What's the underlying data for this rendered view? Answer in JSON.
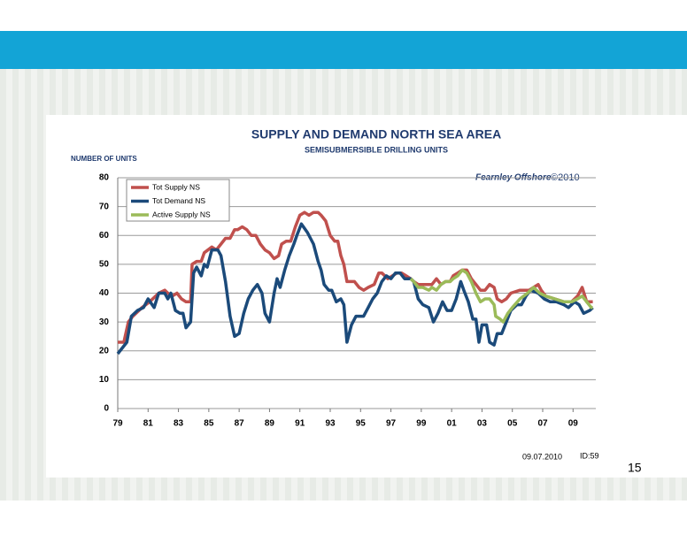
{
  "chart_data": {
    "type": "line",
    "title": "SUPPLY AND DEMAND NORTH SEA AREA",
    "subtitle": "SEMISUBMERSIBLE DRILLING UNITS",
    "y_label": "NUMBER OF UNITS",
    "xlim": [
      1979,
      2010.5
    ],
    "ylim": [
      0,
      80
    ],
    "xticks": [
      {
        "value": 1979,
        "label": "79"
      },
      {
        "value": 1981,
        "label": "81"
      },
      {
        "value": 1983,
        "label": "83"
      },
      {
        "value": 1985,
        "label": "85"
      },
      {
        "value": 1987,
        "label": "87"
      },
      {
        "value": 1989,
        "label": "89"
      },
      {
        "value": 1991,
        "label": "91"
      },
      {
        "value": 1993,
        "label": "93"
      },
      {
        "value": 1995,
        "label": "95"
      },
      {
        "value": 1997,
        "label": "97"
      },
      {
        "value": 1999,
        "label": "99"
      },
      {
        "value": 2001,
        "label": "01"
      },
      {
        "value": 2003,
        "label": "03"
      },
      {
        "value": 2005,
        "label": "05"
      },
      {
        "value": 2007,
        "label": "07"
      },
      {
        "value": 2009,
        "label": "09"
      }
    ],
    "yticks": [
      0,
      10,
      20,
      30,
      40,
      50,
      60,
      70,
      80
    ],
    "grid": true,
    "legend": "upper left",
    "series": [
      {
        "name": "Tot Supply NS",
        "color": "#c0504d",
        "x": [
          1979.0,
          1979.4,
          1979.7,
          1980.0,
          1980.6,
          1981.1,
          1981.7,
          1982.1,
          1982.3,
          1982.6,
          1982.9,
          1983.2,
          1983.5,
          1983.8,
          1983.9,
          1984.2,
          1984.5,
          1984.7,
          1985.2,
          1985.5,
          1985.8,
          1986.1,
          1986.4,
          1986.7,
          1986.9,
          1987.2,
          1987.5,
          1987.8,
          1988.1,
          1988.4,
          1988.7,
          1989.0,
          1989.3,
          1989.6,
          1989.8,
          1990.1,
          1990.4,
          1990.7,
          1991.0,
          1991.3,
          1991.6,
          1991.9,
          1992.2,
          1992.4,
          1992.7,
          1993.0,
          1993.3,
          1993.5,
          1993.7,
          1993.9,
          1994.1,
          1994.4,
          1994.6,
          1994.9,
          1995.2,
          1995.5,
          1995.9,
          1996.2,
          1996.4,
          1996.8,
          1997.1,
          1997.4,
          1997.7,
          1998.0,
          1998.3,
          1998.5,
          1998.8,
          1999.4,
          1999.7,
          2000.0,
          2000.3,
          2000.6,
          2000.9,
          2001.1,
          2001.4,
          2001.7,
          2002.0,
          2002.3,
          2002.6,
          2002.9,
          2003.2,
          2003.5,
          2003.8,
          2004.0,
          2004.3,
          2004.6,
          2004.9,
          2005.5,
          2006.1,
          2006.4,
          2006.7,
          2006.9,
          2007.2,
          2007.8,
          2008.4,
          2008.9,
          2009.3,
          2009.6,
          2009.9,
          2010.2,
          2010.3
        ],
        "values": [
          23,
          23,
          30,
          32,
          35,
          37,
          40,
          41,
          40,
          39,
          40,
          38,
          37,
          37,
          50,
          51,
          51,
          54,
          56,
          55,
          57,
          59,
          59,
          62,
          62,
          63,
          62,
          60,
          60,
          57,
          55,
          54,
          52,
          53,
          57,
          58,
          58,
          63,
          67,
          68,
          67,
          68,
          68,
          67,
          65,
          60,
          58,
          58,
          53,
          50,
          44,
          44,
          44,
          42,
          41,
          42,
          43,
          47,
          47,
          45,
          46,
          47,
          47,
          46,
          45,
          44,
          43,
          43,
          43,
          45,
          43,
          44,
          44,
          46,
          47,
          48,
          48,
          45,
          43,
          41,
          41,
          43,
          42,
          38,
          37,
          38,
          40,
          41,
          41,
          42,
          43,
          41,
          39,
          38,
          37,
          37,
          39,
          42,
          37,
          37,
          37
        ]
      },
      {
        "name": "Tot Demand  NS",
        "color": "#1b4a7a",
        "x": [
          1979.0,
          1979.6,
          1979.9,
          1980.3,
          1980.7,
          1981.0,
          1981.4,
          1981.7,
          1982.1,
          1982.3,
          1982.5,
          1982.8,
          1983.1,
          1983.3,
          1983.5,
          1983.8,
          1984.0,
          1984.2,
          1984.5,
          1984.7,
          1984.9,
          1985.2,
          1985.6,
          1985.8,
          1986.1,
          1986.4,
          1986.7,
          1987.0,
          1987.3,
          1987.6,
          1987.9,
          1988.2,
          1988.5,
          1988.7,
          1989.0,
          1989.3,
          1989.5,
          1989.7,
          1990.0,
          1990.3,
          1990.6,
          1990.8,
          1991.1,
          1991.5,
          1991.9,
          1992.2,
          1992.4,
          1992.6,
          1992.9,
          1993.1,
          1993.4,
          1993.7,
          1993.9,
          1994.1,
          1994.4,
          1994.7,
          1995.0,
          1995.2,
          1995.5,
          1995.8,
          1996.1,
          1996.4,
          1996.7,
          1997.0,
          1997.3,
          1997.6,
          1997.9,
          1998.3,
          1998.5,
          1998.8,
          1999.1,
          1999.5,
          1999.8,
          2000.1,
          2000.4,
          2000.7,
          2001.0,
          2001.3,
          2001.6,
          2001.8,
          2002.1,
          2002.4,
          2002.6,
          2002.8,
          2003.0,
          2003.3,
          2003.5,
          2003.8,
          2004.0,
          2004.3,
          2004.6,
          2004.9,
          2005.3,
          2005.6,
          2005.9,
          2006.2,
          2006.7,
          2007.1,
          2007.5,
          2007.9,
          2008.4,
          2008.7,
          2009.1,
          2009.4,
          2009.7,
          2010.1,
          2010.3
        ],
        "values": [
          19,
          23,
          32,
          34,
          35,
          38,
          35,
          40,
          40,
          38,
          40,
          34,
          33,
          33,
          28,
          30,
          47,
          49,
          46,
          50,
          49,
          55,
          55,
          53,
          44,
          32,
          25,
          26,
          33,
          38,
          41,
          43,
          40,
          33,
          30,
          40,
          45,
          42,
          48,
          53,
          57,
          60,
          64,
          61,
          57,
          51,
          48,
          43,
          41,
          41,
          37,
          38,
          36,
          23,
          29,
          32,
          32,
          32,
          35,
          38,
          40,
          44,
          46,
          45,
          47,
          47,
          45,
          45,
          44,
          38,
          36,
          35,
          30,
          33,
          37,
          34,
          34,
          38,
          44,
          41,
          37,
          31,
          31,
          23,
          29,
          29,
          23,
          22,
          26,
          26,
          30,
          34,
          36,
          36,
          39,
          41,
          40,
          38,
          37,
          37,
          36,
          35,
          37,
          36,
          33,
          34,
          35
        ]
      },
      {
        "name": "Active Supply NS",
        "color": "#9bbb59",
        "x": [
          1998.3,
          1998.5,
          1998.8,
          1999.1,
          1999.5,
          1999.7,
          2000.0,
          2000.3,
          2000.6,
          2000.9,
          2001.1,
          2001.4,
          2001.7,
          2002.0,
          2002.3,
          2002.6,
          2002.9,
          2003.2,
          2003.5,
          2003.8,
          2003.9,
          2004.2,
          2004.4,
          2004.7,
          2005.0,
          2005.5,
          2006.0,
          2006.4,
          2006.8,
          2007.2,
          2007.8,
          2008.4,
          2008.9,
          2009.3,
          2009.6,
          2009.9,
          2010.2,
          2010.3
        ],
        "values": [
          45,
          44,
          42,
          42,
          41,
          42,
          41,
          43,
          44,
          44,
          45,
          46,
          48,
          47,
          44,
          40,
          37,
          38,
          38,
          36,
          32,
          31,
          30,
          33,
          35,
          38,
          40,
          42,
          40,
          39,
          38,
          37,
          37,
          38,
          39,
          37,
          35,
          35
        ]
      }
    ]
  },
  "slide": {
    "logo": "Fearnley Offshore",
    "copyright": "©2010",
    "date": "09.07.2010",
    "id": "ID:59",
    "page": "15"
  }
}
